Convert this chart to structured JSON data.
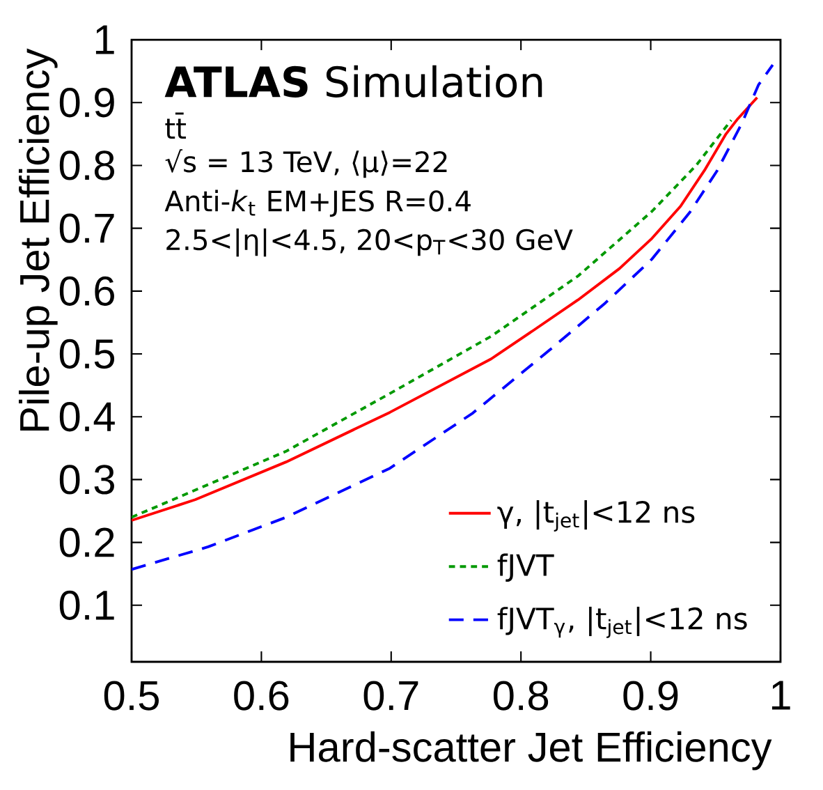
{
  "chart_data": {
    "type": "line",
    "xlabel": "Hard-scatter Jet Efficiency",
    "ylabel": "Pile-up Jet Efficiency",
    "annotations": [
      "**ATLAS** Simulation",
      "tt̄",
      "√s = 13 TeV, ⟨μ⟩=22",
      "Anti-*k*$_{t}$ EM+JES R=0.4",
      "2.5<|η|<4.5, 20<p$_{T}$<30 GeV"
    ],
    "xlim": [
      0.5,
      1
    ],
    "ylim": [
      0.01,
      1
    ],
    "xticks": [
      0.5,
      0.6,
      0.7,
      0.8,
      0.9,
      1
    ],
    "yticks": [
      0.1,
      0.2,
      0.3,
      0.4,
      0.5,
      0.6,
      0.7,
      0.8,
      0.9,
      1
    ],
    "legend": "bottom right",
    "grid": false,
    "series": [
      {
        "name": "γ, |t$_{jet}$|<12 ns",
        "color": "#ff0000",
        "line_style": "solid",
        "x": [
          0.5,
          0.549,
          0.619,
          0.699,
          0.777,
          0.81,
          0.844,
          0.876,
          0.901,
          0.923,
          0.942,
          0.958,
          0.967,
          0.982
        ],
        "values": [
          0.235,
          0.268,
          0.328,
          0.407,
          0.492,
          0.538,
          0.586,
          0.636,
          0.684,
          0.735,
          0.794,
          0.85,
          0.874,
          0.908
        ]
      },
      {
        "name": "fJVT",
        "color": "#009900",
        "line_style": "dotted",
        "x": [
          0.5,
          0.619,
          0.699,
          0.777,
          0.844,
          0.901,
          0.935,
          0.962
        ],
        "values": [
          0.24,
          0.345,
          0.437,
          0.528,
          0.624,
          0.727,
          0.8,
          0.872
        ]
      },
      {
        "name": "fJVT$_{γ}$, |t$_{jet}$|<12 ns",
        "color": "#0000ff",
        "line_style": "dashed",
        "x": [
          0.5,
          0.559,
          0.619,
          0.699,
          0.763,
          0.822,
          0.865,
          0.901,
          0.93,
          0.951,
          0.97,
          0.983,
          0.994
        ],
        "values": [
          0.157,
          0.193,
          0.24,
          0.318,
          0.406,
          0.506,
          0.581,
          0.651,
          0.725,
          0.791,
          0.866,
          0.928,
          0.96
        ]
      }
    ]
  }
}
